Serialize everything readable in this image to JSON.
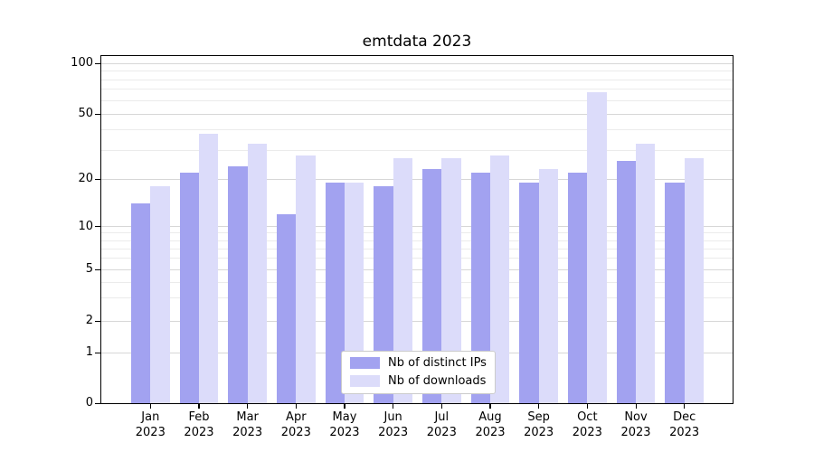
{
  "title": "emtdata 2023",
  "colors": {
    "background": "#ffffff",
    "axis": "#000000",
    "grid_major": "#d7d7d7",
    "grid_minor": "#ebebeb",
    "legend_border": "#cbcbcb",
    "text": "#000000"
  },
  "chart_data": {
    "type": "bar",
    "title": "emtdata 2023",
    "categories": [
      "Jan 2023",
      "Feb 2023",
      "Mar 2023",
      "Apr 2023",
      "May 2023",
      "Jun 2023",
      "Jul 2023",
      "Aug 2023",
      "Sep 2023",
      "Oct 2023",
      "Nov 2023",
      "Dec 2023"
    ],
    "series": [
      {
        "name": "Nb of distinct IPs",
        "color": "#a2a2f0",
        "values": [
          14,
          22,
          24,
          12,
          19,
          18,
          23,
          22,
          19,
          22,
          26,
          19
        ]
      },
      {
        "name": "Nb of downloads",
        "color": "#dcdcfa",
        "values": [
          18,
          38,
          33,
          28,
          19,
          27,
          27,
          28,
          23,
          67,
          33,
          27
        ]
      }
    ],
    "yscale": "symlog",
    "yticks": [
      0,
      1,
      2,
      5,
      10,
      20,
      50,
      100
    ],
    "minor_yticks": [
      3,
      4,
      6,
      7,
      8,
      9,
      30,
      40,
      60,
      70,
      80,
      90
    ],
    "ylim": [
      0,
      110
    ],
    "xlabel": "",
    "ylabel": "",
    "grid": true,
    "legend_position": "lower center"
  }
}
